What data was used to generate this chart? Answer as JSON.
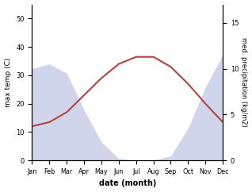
{
  "months": [
    "Jan",
    "Feb",
    "Mar",
    "Apr",
    "May",
    "Jun",
    "Jul",
    "Aug",
    "Sep",
    "Oct",
    "Nov",
    "Dec"
  ],
  "temp_max": [
    12.0,
    13.5,
    17.0,
    23.0,
    29.0,
    34.0,
    36.5,
    36.5,
    33.0,
    27.0,
    20.0,
    13.5
  ],
  "precipitation": [
    10.0,
    10.5,
    9.5,
    5.5,
    2.0,
    0.2,
    0.0,
    0.0,
    0.5,
    3.5,
    8.0,
    11.5
  ],
  "precip_scale_factor": 3.5,
  "temp_color": "#b94040",
  "precip_fill_color": "#aab4dd",
  "precip_fill_alpha": 0.55,
  "xlabel": "date (month)",
  "ylabel_left": "max temp (C)",
  "ylabel_right": "med. precipitation (kg/m2)",
  "ylim_left": [
    0,
    55
  ],
  "ylim_right": [
    0,
    17
  ],
  "yticks_left": [
    0,
    10,
    20,
    30,
    40,
    50
  ],
  "yticks_right": [
    0,
    5,
    10,
    15
  ],
  "bg_color": "#ffffff",
  "figure_size": [
    3.18,
    2.42
  ],
  "dpi": 100
}
